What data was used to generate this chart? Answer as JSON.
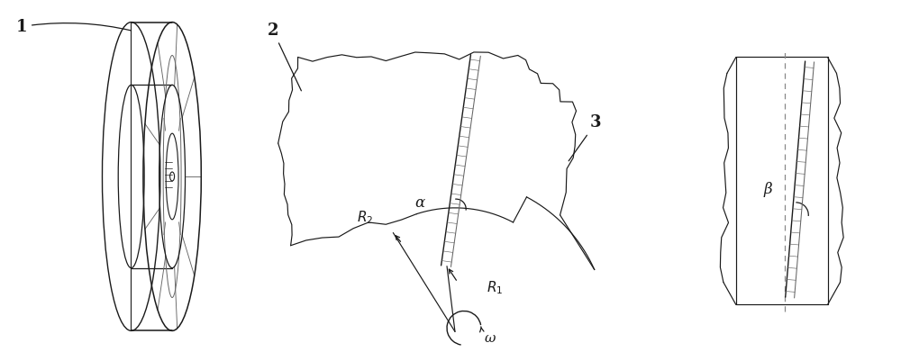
{
  "bg_color": "#ffffff",
  "line_color": "#1a1a1a",
  "gray_color": "#666666",
  "labels": {
    "label1": "1",
    "label2": "2",
    "label3": "3",
    "alpha": "α",
    "beta": "β",
    "R1": "$R_1$",
    "R2": "$R_2$",
    "omega": "ω"
  },
  "figsize": [
    10.0,
    3.91
  ],
  "dpi": 100
}
